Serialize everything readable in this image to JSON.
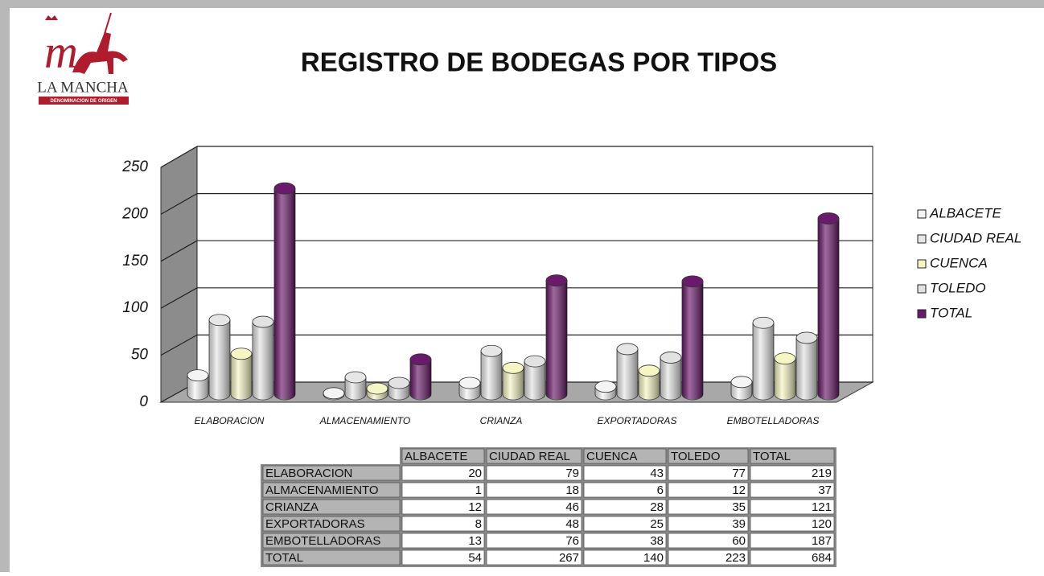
{
  "logo": {
    "text": "LA MANCHA",
    "subtext": "DENOMINACION DE ORIGEN"
  },
  "chart_data": {
    "type": "bar3d",
    "title": "REGISTRO DE BODEGAS POR TIPOS",
    "categories": [
      "ELABORACION",
      "ALMACENAMIENTO",
      "CRIANZA",
      "EXPORTADORAS",
      "EMBOTELLADORAS"
    ],
    "series": [
      {
        "name": "ALBACETE",
        "color": "#f4f4f4",
        "values": [
          20,
          1,
          12,
          8,
          13
        ]
      },
      {
        "name": "CIUDAD REAL",
        "color": "#e6e6e6",
        "values": [
          79,
          18,
          46,
          48,
          76
        ]
      },
      {
        "name": "CUENCA",
        "color": "#f6f6c4",
        "values": [
          43,
          6,
          28,
          25,
          38
        ]
      },
      {
        "name": "TOLEDO",
        "color": "#e2e2e2",
        "values": [
          77,
          12,
          35,
          39,
          60
        ]
      },
      {
        "name": "TOTAL",
        "color": "#6a1a6a",
        "values": [
          219,
          37,
          121,
          120,
          187
        ]
      }
    ],
    "totals": {
      "label": "TOTAL",
      "values": [
        54,
        267,
        140,
        223,
        684
      ]
    },
    "ylim": [
      0,
      250
    ],
    "yticks": [
      0,
      50,
      100,
      150,
      200,
      250
    ],
    "grid": true,
    "legend": "right"
  }
}
